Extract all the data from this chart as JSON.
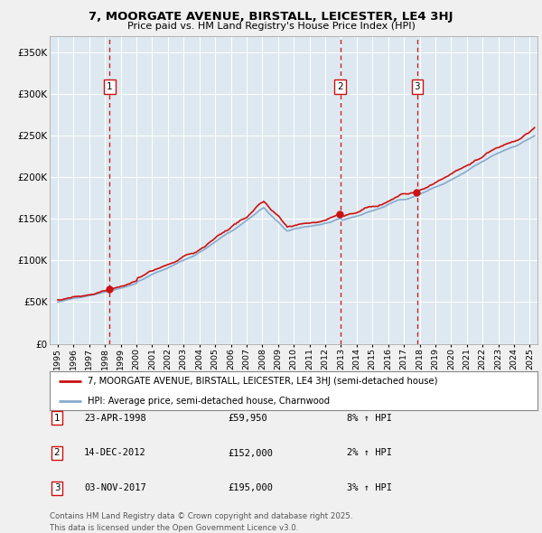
{
  "title": "7, MOORGATE AVENUE, BIRSTALL, LEICESTER, LE4 3HJ",
  "subtitle": "Price paid vs. HM Land Registry's House Price Index (HPI)",
  "legend_line1": "7, MOORGATE AVENUE, BIRSTALL, LEICESTER, LE4 3HJ (semi-detached house)",
  "legend_line2": "HPI: Average price, semi-detached house, Charnwood",
  "footer": "Contains HM Land Registry data © Crown copyright and database right 2025.\nThis data is licensed under the Open Government Licence v3.0.",
  "sale_labels": [
    {
      "num": "1",
      "date": "23-APR-1998",
      "price": "£59,950",
      "pct": "8% ↑ HPI"
    },
    {
      "num": "2",
      "date": "14-DEC-2012",
      "price": "£152,000",
      "pct": "2% ↑ HPI"
    },
    {
      "num": "3",
      "date": "03-NOV-2017",
      "price": "£195,000",
      "pct": "3% ↑ HPI"
    }
  ],
  "sale_years": [
    1998.3,
    2012.95,
    2017.84
  ],
  "sale_prices": [
    59950,
    152000,
    195000
  ],
  "hpi_color": "#88aacc",
  "price_color": "#cc1111",
  "bg_color": "#dde8f0",
  "grid_color": "#ffffff",
  "vline_color": "#cc1111",
  "ylim": [
    0,
    370000
  ],
  "yticks": [
    0,
    50000,
    100000,
    150000,
    200000,
    250000,
    300000,
    350000
  ],
  "xlim_start": 1994.5,
  "xlim_end": 2025.5,
  "fig_bg": "#f0f0f0"
}
